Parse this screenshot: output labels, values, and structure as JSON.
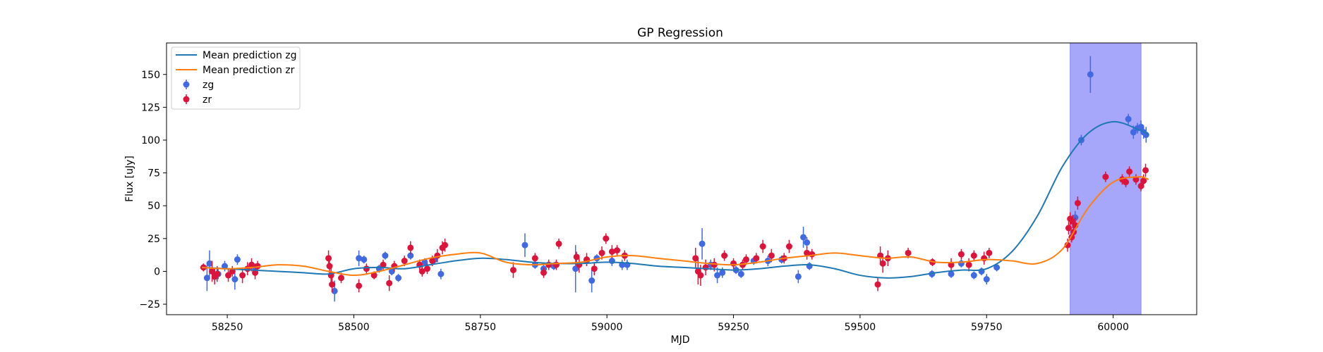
{
  "chart_data": {
    "type": "scatter",
    "title": "GP Regression",
    "xlabel": "MJD",
    "ylabel": "Flux [uJy]",
    "xlim": [
      58130,
      60165
    ],
    "ylim": [
      -33,
      174
    ],
    "xticks": [
      58250,
      58500,
      58750,
      59000,
      59250,
      59500,
      59750,
      60000
    ],
    "yticks": [
      -25,
      0,
      25,
      50,
      75,
      100,
      125,
      150
    ],
    "grid": false,
    "legend_position": "top-left",
    "shaded_span": {
      "x": [
        59915,
        60055
      ],
      "color": "#a6a6fa"
    },
    "series": [
      {
        "name": "Mean prediction zg",
        "kind": "line",
        "color": "#1f77b4",
        "x": [
          58200,
          58250,
          58300,
          58350,
          58400,
          58450,
          58500,
          58550,
          58600,
          58650,
          58700,
          58750,
          58800,
          58850,
          58900,
          58950,
          59000,
          59050,
          59100,
          59150,
          59200,
          59250,
          59300,
          59350,
          59400,
          59450,
          59500,
          59550,
          59600,
          59650,
          59700,
          59750,
          59800,
          59850,
          59900,
          59950,
          60000,
          60050,
          60070
        ],
        "y": [
          3,
          2,
          1,
          0,
          -1,
          -2,
          2,
          3,
          2,
          5,
          8,
          10,
          9,
          7,
          6,
          6,
          7,
          6,
          4,
          3,
          2,
          1,
          2,
          4,
          5,
          2,
          -3,
          -5,
          -4,
          -1,
          1,
          2,
          15,
          42,
          80,
          105,
          114,
          108,
          104
        ]
      },
      {
        "name": "Mean prediction zr",
        "kind": "line",
        "color": "#ff7f0e",
        "x": [
          58200,
          58250,
          58300,
          58350,
          58400,
          58450,
          58500,
          58550,
          58600,
          58650,
          58700,
          58750,
          58800,
          58850,
          58900,
          58950,
          59000,
          59050,
          59100,
          59150,
          59200,
          59250,
          59300,
          59350,
          59400,
          59450,
          59500,
          59550,
          59600,
          59650,
          59700,
          59750,
          59800,
          59850,
          59900,
          59950,
          60000,
          60050,
          60070
        ],
        "y": [
          3,
          2,
          3,
          5,
          4,
          0,
          -3,
          0,
          5,
          10,
          13,
          14,
          7,
          5,
          6,
          7,
          11,
          12,
          10,
          8,
          6,
          5,
          7,
          10,
          12,
          14,
          12,
          10,
          11,
          7,
          7,
          9,
          8,
          6,
          17,
          48,
          68,
          72,
          70
        ]
      },
      {
        "name": "zg",
        "kind": "errorbar",
        "color": "#4169e1",
        "points": [
          {
            "x": 58210,
            "y": -5,
            "e": 10
          },
          {
            "x": 58215,
            "y": 6,
            "e": 10
          },
          {
            "x": 58232,
            "y": -2,
            "e": 4
          },
          {
            "x": 58245,
            "y": 4,
            "e": 4
          },
          {
            "x": 58265,
            "y": -6,
            "e": 8
          },
          {
            "x": 58270,
            "y": 9,
            "e": 4
          },
          {
            "x": 58290,
            "y": 2,
            "e": 3
          },
          {
            "x": 58305,
            "y": 3,
            "e": 3
          },
          {
            "x": 58462,
            "y": -15,
            "e": 8
          },
          {
            "x": 58510,
            "y": 10,
            "e": 6
          },
          {
            "x": 58520,
            "y": 9,
            "e": 3
          },
          {
            "x": 58550,
            "y": 2,
            "e": 3
          },
          {
            "x": 58562,
            "y": 12,
            "e": 3
          },
          {
            "x": 58575,
            "y": 0,
            "e": 3
          },
          {
            "x": 58588,
            "y": -5,
            "e": 3
          },
          {
            "x": 58612,
            "y": 12,
            "e": 3
          },
          {
            "x": 58640,
            "y": 7,
            "e": 3
          },
          {
            "x": 58660,
            "y": 9,
            "e": 3
          },
          {
            "x": 58672,
            "y": -2,
            "e": 4
          },
          {
            "x": 58838,
            "y": 20,
            "e": 9
          },
          {
            "x": 58858,
            "y": 5,
            "e": 3
          },
          {
            "x": 58875,
            "y": 2,
            "e": 3
          },
          {
            "x": 58895,
            "y": 4,
            "e": 3
          },
          {
            "x": 58938,
            "y": 2,
            "e": 18
          },
          {
            "x": 58960,
            "y": 8,
            "e": 4
          },
          {
            "x": 58970,
            "y": -7,
            "e": 9
          },
          {
            "x": 58980,
            "y": 10,
            "e": 3
          },
          {
            "x": 59010,
            "y": 8,
            "e": 4
          },
          {
            "x": 59030,
            "y": 5,
            "e": 4
          },
          {
            "x": 59040,
            "y": 5,
            "e": 4
          },
          {
            "x": 59188,
            "y": 21,
            "e": 12
          },
          {
            "x": 59205,
            "y": 5,
            "e": 4
          },
          {
            "x": 59218,
            "y": -3,
            "e": 6
          },
          {
            "x": 59228,
            "y": -1,
            "e": 4
          },
          {
            "x": 59255,
            "y": 1,
            "e": 3
          },
          {
            "x": 59265,
            "y": -2,
            "e": 3
          },
          {
            "x": 59290,
            "y": 8,
            "e": 3
          },
          {
            "x": 59318,
            "y": 8,
            "e": 4
          },
          {
            "x": 59345,
            "y": 9,
            "e": 3
          },
          {
            "x": 59378,
            "y": -4,
            "e": 5
          },
          {
            "x": 59388,
            "y": 26,
            "e": 8
          },
          {
            "x": 59395,
            "y": 22,
            "e": 4
          },
          {
            "x": 59400,
            "y": 4,
            "e": 3
          },
          {
            "x": 59642,
            "y": -2,
            "e": 3
          },
          {
            "x": 59680,
            "y": -2,
            "e": 3
          },
          {
            "x": 59700,
            "y": 6,
            "e": 3
          },
          {
            "x": 59725,
            "y": -3,
            "e": 3
          },
          {
            "x": 59740,
            "y": 0,
            "e": 3
          },
          {
            "x": 59750,
            "y": -6,
            "e": 4
          },
          {
            "x": 59770,
            "y": 3,
            "e": 3
          },
          {
            "x": 59925,
            "y": 41,
            "e": 5
          },
          {
            "x": 59937,
            "y": 100,
            "e": 4
          },
          {
            "x": 59955,
            "y": 150,
            "e": 14
          },
          {
            "x": 60030,
            "y": 116,
            "e": 4
          },
          {
            "x": 60040,
            "y": 106,
            "e": 5
          },
          {
            "x": 60048,
            "y": 109,
            "e": 4
          },
          {
            "x": 60055,
            "y": 110,
            "e": 5
          },
          {
            "x": 60060,
            "y": 106,
            "e": 5
          },
          {
            "x": 60065,
            "y": 104,
            "e": 6
          }
        ]
      },
      {
        "name": "zr",
        "kind": "errorbar",
        "color": "#dc143c",
        "points": [
          {
            "x": 58203,
            "y": 3,
            "e": 3
          },
          {
            "x": 58220,
            "y": 0,
            "e": 8
          },
          {
            "x": 58225,
            "y": -4,
            "e": 6
          },
          {
            "x": 58230,
            "y": -2,
            "e": 6
          },
          {
            "x": 58252,
            "y": -3,
            "e": 5
          },
          {
            "x": 58260,
            "y": 0,
            "e": 4
          },
          {
            "x": 58280,
            "y": -3,
            "e": 6
          },
          {
            "x": 58290,
            "y": 2,
            "e": 5
          },
          {
            "x": 58298,
            "y": 5,
            "e": 5
          },
          {
            "x": 58305,
            "y": -1,
            "e": 5
          },
          {
            "x": 58310,
            "y": 4,
            "e": 4
          },
          {
            "x": 58450,
            "y": 10,
            "e": 6
          },
          {
            "x": 58452,
            "y": 4,
            "e": 8
          },
          {
            "x": 58455,
            "y": -3,
            "e": 6
          },
          {
            "x": 58457,
            "y": -10,
            "e": 6
          },
          {
            "x": 58475,
            "y": -5,
            "e": 4
          },
          {
            "x": 58510,
            "y": -11,
            "e": 5
          },
          {
            "x": 58525,
            "y": 2,
            "e": 4
          },
          {
            "x": 58540,
            "y": -3,
            "e": 3
          },
          {
            "x": 58558,
            "y": 5,
            "e": 4
          },
          {
            "x": 58570,
            "y": -9,
            "e": 6
          },
          {
            "x": 58580,
            "y": 4,
            "e": 4
          },
          {
            "x": 58600,
            "y": 8,
            "e": 4
          },
          {
            "x": 58612,
            "y": 18,
            "e": 5
          },
          {
            "x": 58630,
            "y": 5,
            "e": 4
          },
          {
            "x": 58635,
            "y": 0,
            "e": 4
          },
          {
            "x": 58645,
            "y": 2,
            "e": 4
          },
          {
            "x": 58655,
            "y": 8,
            "e": 4
          },
          {
            "x": 58665,
            "y": 12,
            "e": 5
          },
          {
            "x": 58675,
            "y": 18,
            "e": 5
          },
          {
            "x": 58680,
            "y": 20,
            "e": 5
          },
          {
            "x": 58815,
            "y": 1,
            "e": 6
          },
          {
            "x": 58858,
            "y": 10,
            "e": 4
          },
          {
            "x": 58875,
            "y": -1,
            "e": 4
          },
          {
            "x": 58885,
            "y": 5,
            "e": 4
          },
          {
            "x": 58900,
            "y": 5,
            "e": 4
          },
          {
            "x": 58905,
            "y": 21,
            "e": 4
          },
          {
            "x": 58940,
            "y": 11,
            "e": 4
          },
          {
            "x": 58945,
            "y": 5,
            "e": 6
          },
          {
            "x": 58960,
            "y": 9,
            "e": 5
          },
          {
            "x": 58975,
            "y": 2,
            "e": 5
          },
          {
            "x": 58990,
            "y": 14,
            "e": 5
          },
          {
            "x": 58998,
            "y": 25,
            "e": 4
          },
          {
            "x": 59010,
            "y": 15,
            "e": 5
          },
          {
            "x": 59020,
            "y": 16,
            "e": 4
          },
          {
            "x": 59035,
            "y": 12,
            "e": 4
          },
          {
            "x": 59175,
            "y": 10,
            "e": 8
          },
          {
            "x": 59180,
            "y": 0,
            "e": 10
          },
          {
            "x": 59185,
            "y": -3,
            "e": 8
          },
          {
            "x": 59195,
            "y": 3,
            "e": 6
          },
          {
            "x": 59212,
            "y": 5,
            "e": 5
          },
          {
            "x": 59232,
            "y": 12,
            "e": 4
          },
          {
            "x": 59250,
            "y": 6,
            "e": 4
          },
          {
            "x": 59268,
            "y": 5,
            "e": 4
          },
          {
            "x": 59275,
            "y": 9,
            "e": 4
          },
          {
            "x": 59295,
            "y": 10,
            "e": 4
          },
          {
            "x": 59308,
            "y": 19,
            "e": 5
          },
          {
            "x": 59325,
            "y": 12,
            "e": 5
          },
          {
            "x": 59350,
            "y": 10,
            "e": 4
          },
          {
            "x": 59360,
            "y": 19,
            "e": 5
          },
          {
            "x": 59395,
            "y": 14,
            "e": 5
          },
          {
            "x": 59405,
            "y": 13,
            "e": 4
          },
          {
            "x": 59535,
            "y": -10,
            "e": 5
          },
          {
            "x": 59540,
            "y": 12,
            "e": 7
          },
          {
            "x": 59545,
            "y": 6,
            "e": 7
          },
          {
            "x": 59555,
            "y": 10,
            "e": 6
          },
          {
            "x": 59595,
            "y": 14,
            "e": 4
          },
          {
            "x": 59643,
            "y": 7,
            "e": 3
          },
          {
            "x": 59680,
            "y": 5,
            "e": 5
          },
          {
            "x": 59700,
            "y": 13,
            "e": 4
          },
          {
            "x": 59715,
            "y": 5,
            "e": 5
          },
          {
            "x": 59725,
            "y": 12,
            "e": 4
          },
          {
            "x": 59745,
            "y": 10,
            "e": 5
          },
          {
            "x": 59755,
            "y": 14,
            "e": 4
          },
          {
            "x": 59910,
            "y": 20,
            "e": 5
          },
          {
            "x": 59912,
            "y": 33,
            "e": 5
          },
          {
            "x": 59915,
            "y": 40,
            "e": 5
          },
          {
            "x": 59918,
            "y": 26,
            "e": 4
          },
          {
            "x": 59920,
            "y": 38,
            "e": 5
          },
          {
            "x": 59922,
            "y": 30,
            "e": 5
          },
          {
            "x": 59925,
            "y": 35,
            "e": 6
          },
          {
            "x": 59930,
            "y": 52,
            "e": 5
          },
          {
            "x": 59985,
            "y": 72,
            "e": 4
          },
          {
            "x": 60018,
            "y": 70,
            "e": 4
          },
          {
            "x": 60025,
            "y": 68,
            "e": 4
          },
          {
            "x": 60032,
            "y": 76,
            "e": 4
          },
          {
            "x": 60045,
            "y": 70,
            "e": 4
          },
          {
            "x": 60055,
            "y": 65,
            "e": 4
          },
          {
            "x": 60060,
            "y": 69,
            "e": 5
          },
          {
            "x": 60064,
            "y": 77,
            "e": 5
          }
        ]
      }
    ]
  }
}
